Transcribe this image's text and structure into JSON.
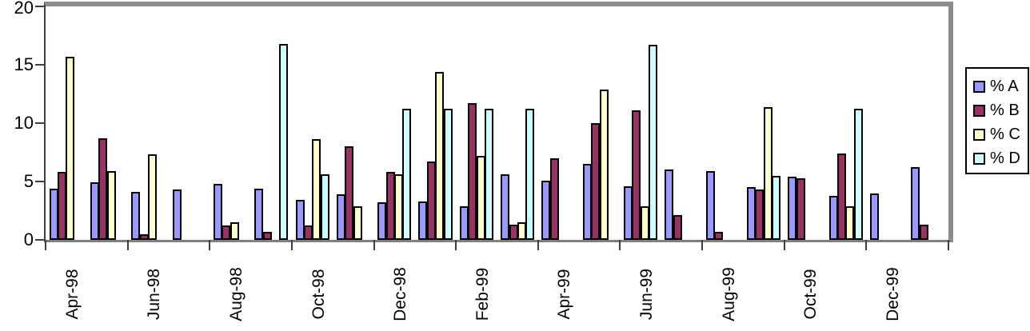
{
  "chart_data": {
    "type": "bar",
    "title": "",
    "xlabel": "",
    "ylabel": "",
    "ylim": [
      0,
      20
    ],
    "yticks": [
      0,
      5,
      10,
      15,
      20
    ],
    "grid": false,
    "legend_position": "right",
    "n_categories": 22,
    "x_tick_labels": [
      "Apr-98",
      "Jun-98",
      "Aug-98",
      "Oct-98",
      "Dec-98",
      "Feb-99",
      "Apr-99",
      "Jun-99",
      "Aug-99",
      "Oct-99",
      "Dec-99"
    ],
    "series": [
      {
        "name": "% A",
        "color": "#9999FF",
        "values": [
          4.4,
          4.9,
          4.1,
          4.3,
          4.8,
          4.4,
          3.4,
          3.9,
          3.2,
          3.3,
          2.9,
          5.6,
          5.1,
          6.5,
          4.6,
          6.0,
          5.9,
          4.5,
          5.4,
          3.8,
          4.0,
          6.2
        ]
      },
      {
        "name": "% B",
        "color": "#993366",
        "values": [
          5.8,
          8.7,
          0.5,
          0,
          1.2,
          0.7,
          1.2,
          8.0,
          5.8,
          6.7,
          11.7,
          1.3,
          7.0,
          10.0,
          11.1,
          2.1,
          0.7,
          4.3,
          5.3,
          7.4,
          0,
          1.3
        ]
      },
      {
        "name": "% C",
        "color": "#FFFFCC",
        "values": [
          15.7,
          5.9,
          7.3,
          0,
          1.5,
          0,
          8.6,
          2.9,
          5.6,
          14.4,
          7.2,
          1.5,
          0,
          12.9,
          2.9,
          0,
          0,
          11.4,
          0,
          2.9,
          0,
          0
        ]
      },
      {
        "name": "% D",
        "color": "#CCFFFF",
        "values": [
          0,
          0,
          0,
          0,
          0,
          16.8,
          5.6,
          0,
          11.2,
          11.2,
          11.2,
          11.2,
          0,
          0,
          16.7,
          0,
          0,
          5.5,
          0,
          11.2,
          0,
          0
        ]
      }
    ]
  },
  "colors": {
    "background": "#ffffff",
    "plot_border_gray": "#8c8c8c",
    "axis_line": "#404040",
    "baseline_gray": "#808080",
    "bar_outline": "#000000",
    "text": "#000000"
  }
}
